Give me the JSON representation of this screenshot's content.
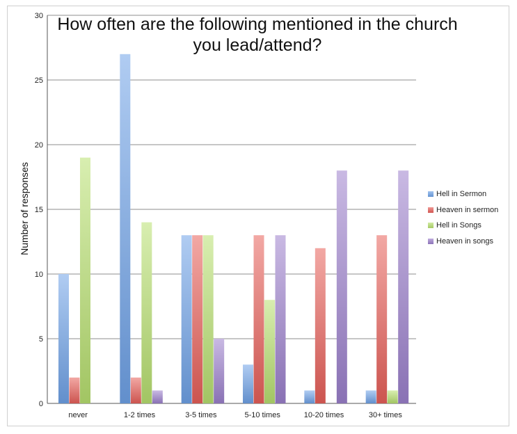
{
  "chart_data": {
    "type": "bar",
    "title_lines": [
      "How often are the following mentioned in the church",
      "you lead/attend?"
    ],
    "xlabel": "",
    "ylabel": "Number of responses",
    "ylim": [
      0,
      30
    ],
    "yticks": [
      0,
      5,
      10,
      15,
      20,
      25,
      30
    ],
    "grid": true,
    "legend_position": "right",
    "categories": [
      "never",
      "1-2 times",
      "3-5 times",
      "5-10 times",
      "10-20 times",
      "30+ times"
    ],
    "series": [
      {
        "name": "Hell in Sermon",
        "color": "#6fa3e8",
        "values": [
          10,
          27,
          13,
          3,
          1,
          1
        ]
      },
      {
        "name": "Heaven in sermon",
        "color": "#e8605a",
        "values": [
          2,
          2,
          13,
          13,
          12,
          13
        ]
      },
      {
        "name": "Hell in Songs",
        "color": "#b8e070",
        "values": [
          19,
          14,
          13,
          8,
          0,
          1
        ]
      },
      {
        "name": "Heaven in songs",
        "color": "#9c80cc",
        "values": [
          0,
          1,
          5,
          13,
          18,
          18
        ]
      }
    ]
  }
}
